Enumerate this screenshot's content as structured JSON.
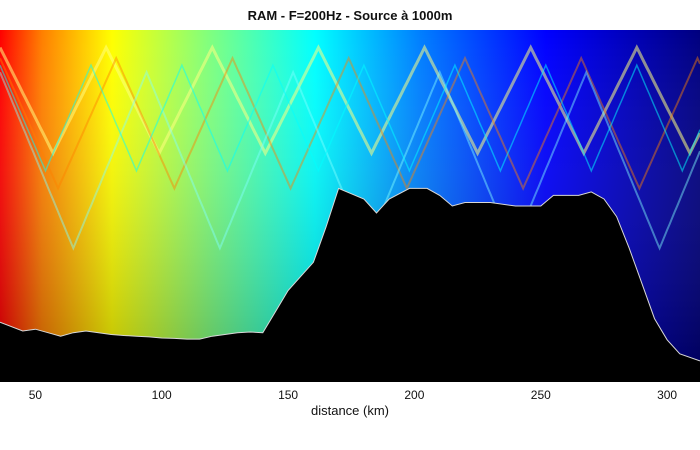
{
  "chart_data": {
    "type": "heatmap",
    "title": "RAM - F=200Hz - Source à 1000m",
    "xlabel": "distance (km)",
    "ylabel": "",
    "xlim": [
      36,
      313
    ],
    "grid": false,
    "legend": "none",
    "x_ticks": [
      50,
      100,
      150,
      200,
      250,
      300
    ],
    "colormap": [
      "#00007f",
      "#0000ff",
      "#007fff",
      "#00ffff",
      "#7fff7f",
      "#ffff00",
      "#ff7f00",
      "#ff0000"
    ],
    "seabed_profile": {
      "x": [
        36,
        45,
        50,
        55,
        60,
        65,
        70,
        75,
        80,
        85,
        90,
        95,
        100,
        105,
        110,
        115,
        120,
        125,
        130,
        135,
        140,
        145,
        150,
        155,
        160,
        165,
        170,
        180,
        185,
        190,
        198,
        205,
        210,
        215,
        220,
        230,
        240,
        250,
        255,
        260,
        265,
        270,
        275,
        280,
        285,
        290,
        295,
        300,
        305,
        313
      ],
      "y": [
        0.83,
        0.855,
        0.85,
        0.86,
        0.87,
        0.86,
        0.855,
        0.86,
        0.865,
        0.868,
        0.87,
        0.872,
        0.875,
        0.876,
        0.878,
        0.878,
        0.87,
        0.865,
        0.86,
        0.858,
        0.86,
        0.8,
        0.74,
        0.7,
        0.66,
        0.56,
        0.45,
        0.48,
        0.52,
        0.48,
        0.45,
        0.45,
        0.47,
        0.5,
        0.49,
        0.49,
        0.5,
        0.5,
        0.47,
        0.47,
        0.47,
        0.46,
        0.48,
        0.53,
        0.62,
        0.72,
        0.82,
        0.88,
        0.92,
        0.94
      ]
    }
  }
}
